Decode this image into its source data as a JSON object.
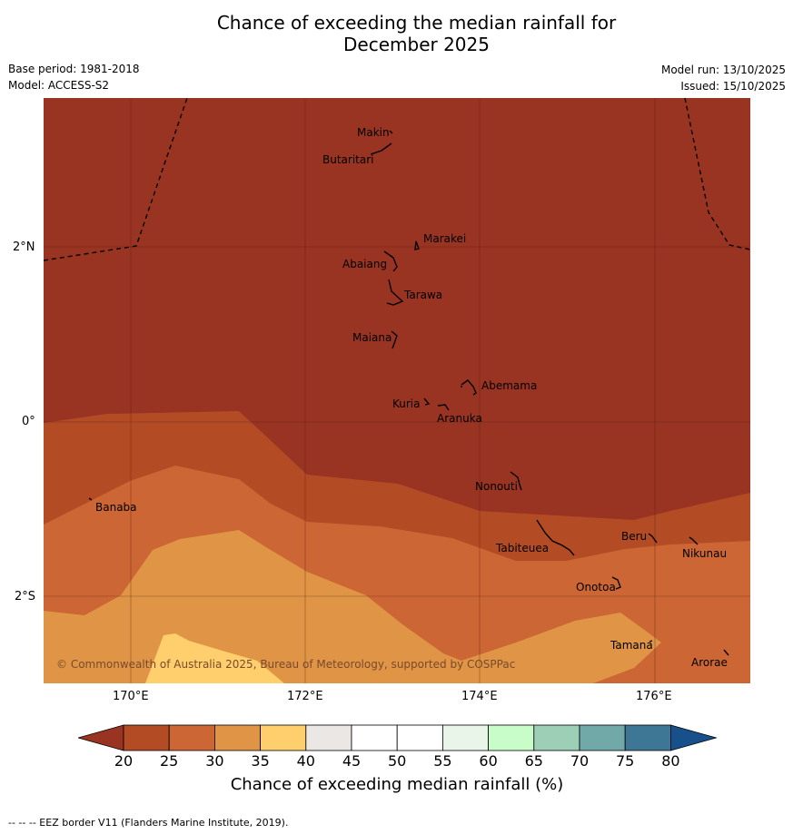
{
  "title_line1": "Chance of exceeding the median rainfall for",
  "title_line2": "December 2025",
  "base_period": "Base period: 1981-2018",
  "model": "Model: ACCESS-S2",
  "model_run": "Model run: 13/10/2025",
  "issued": "Issued: 15/10/2025",
  "map": {
    "copyright": "© Commonwealth of Australia 2025, Bureau of Meteorology, supported by COSPPac",
    "lat_ticks": [
      "2°N",
      "0°",
      "2°S"
    ],
    "lon_ticks": [
      "170°E",
      "172°E",
      "174°E",
      "176°E"
    ],
    "islands": [
      "Makin",
      "Butaritari",
      "Marakei",
      "Abaiang",
      "Tarawa",
      "Maiana",
      "Abemama",
      "Kuria",
      "Aranuka",
      "Nonouti",
      "Banaba",
      "Beru",
      "Nikunau",
      "Tabiteuea",
      "Onotoa",
      "Tamana",
      "Arorae"
    ]
  },
  "colorbar": {
    "title": "Chance of exceeding median rainfall (%)",
    "labels": [
      "20",
      "25",
      "30",
      "35",
      "40",
      "45",
      "50",
      "55",
      "60",
      "65",
      "70",
      "75",
      "80"
    ],
    "colors": [
      "#b34b25",
      "#cc6634",
      "#df9446",
      "#fecf6c",
      "#eae7e4",
      "#ffffff",
      "#ffffff",
      "#e9f5e9",
      "#c8fcc8",
      "#9dcfb6",
      "#71a9a9",
      "#3e7796"
    ],
    "below_color": "#993322",
    "above_color": "#17508a"
  },
  "footer": "--  --  -- EEZ border V11 (Flanders Marine Institute, 2019)."
}
